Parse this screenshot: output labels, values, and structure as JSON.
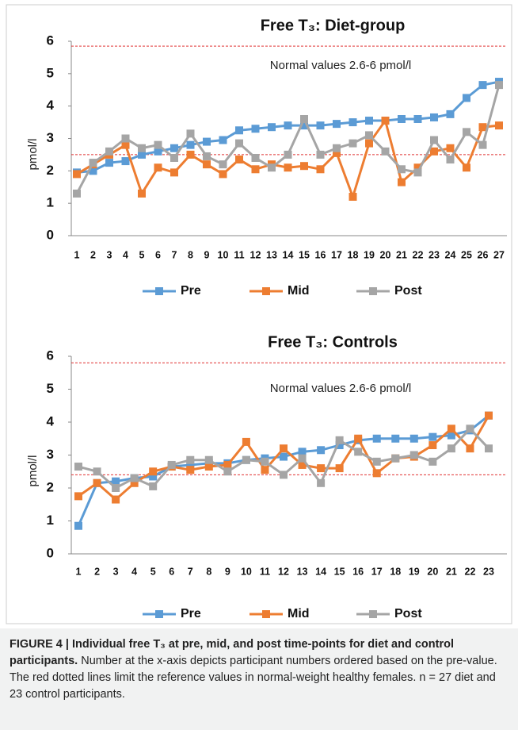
{
  "chart_data": [
    {
      "type": "line",
      "title": "Free T₃: Diet-group",
      "y_label": "pmol/l",
      "annotation": "Normal values 2.6-6  pmol/l",
      "categories": [
        1,
        2,
        3,
        4,
        5,
        6,
        7,
        8,
        9,
        10,
        11,
        12,
        13,
        14,
        15,
        16,
        17,
        18,
        19,
        20,
        21,
        22,
        23,
        24,
        25,
        26,
        27
      ],
      "ylim": [
        0,
        6
      ],
      "yticks": [
        0,
        1,
        2,
        3,
        4,
        5,
        6
      ],
      "reference_lines": [
        2.5,
        5.85
      ],
      "reference_color": "#e03030",
      "series": [
        {
          "name": "Pre",
          "color": "#5b9bd5",
          "values": [
            1.95,
            2.0,
            2.25,
            2.3,
            2.5,
            2.6,
            2.7,
            2.8,
            2.9,
            2.95,
            3.25,
            3.3,
            3.35,
            3.4,
            3.4,
            3.4,
            3.45,
            3.5,
            3.55,
            3.55,
            3.6,
            3.6,
            3.65,
            3.75,
            4.25,
            4.65,
            4.75
          ]
        },
        {
          "name": "Mid",
          "color": "#ed7d31",
          "values": [
            1.9,
            2.2,
            2.5,
            2.8,
            1.3,
            2.1,
            1.95,
            2.5,
            2.2,
            1.9,
            2.35,
            2.05,
            2.2,
            2.1,
            2.15,
            2.05,
            2.55,
            1.2,
            2.85,
            3.55,
            1.65,
            2.1,
            2.6,
            2.7,
            2.1,
            3.35,
            3.4
          ]
        },
        {
          "name": "Post",
          "color": "#a5a5a5",
          "values": [
            1.3,
            2.25,
            2.6,
            3.0,
            2.7,
            2.8,
            2.4,
            3.15,
            2.45,
            2.2,
            2.85,
            2.4,
            2.1,
            2.5,
            3.6,
            2.5,
            2.7,
            2.85,
            3.1,
            2.6,
            2.05,
            1.95,
            2.95,
            2.35,
            3.2,
            2.8,
            4.65
          ]
        }
      ]
    },
    {
      "type": "line",
      "title": "Free T₃: Controls",
      "y_label": "pmol/l",
      "annotation": "Normal values 2.6-6  pmol/l",
      "categories": [
        1,
        2,
        3,
        4,
        5,
        6,
        7,
        8,
        9,
        10,
        11,
        12,
        13,
        14,
        15,
        16,
        17,
        18,
        19,
        20,
        21,
        22,
        23
      ],
      "ylim": [
        0,
        6
      ],
      "yticks": [
        0,
        1,
        2,
        3,
        4,
        5,
        6
      ],
      "reference_lines": [
        2.4,
        5.8
      ],
      "reference_color": "#e03030",
      "series": [
        {
          "name": "Pre",
          "color": "#5b9bd5",
          "values": [
            0.85,
            2.15,
            2.2,
            2.3,
            2.35,
            2.65,
            2.7,
            2.75,
            2.75,
            2.85,
            2.9,
            2.95,
            3.1,
            3.15,
            3.3,
            3.45,
            3.5,
            3.5,
            3.5,
            3.55,
            3.6,
            3.75,
            4.2
          ]
        },
        {
          "name": "Mid",
          "color": "#ed7d31",
          "values": [
            1.75,
            2.15,
            1.65,
            2.15,
            2.5,
            2.65,
            2.55,
            2.65,
            2.7,
            3.4,
            2.55,
            3.2,
            2.7,
            2.6,
            2.6,
            3.5,
            2.45,
            2.9,
            2.95,
            3.3,
            3.8,
            3.2,
            4.2
          ]
        },
        {
          "name": "Post",
          "color": "#a5a5a5",
          "values": [
            2.65,
            2.5,
            2.0,
            2.3,
            2.05,
            2.7,
            2.85,
            2.85,
            2.5,
            2.85,
            2.8,
            2.4,
            2.9,
            2.15,
            3.45,
            3.1,
            2.8,
            2.9,
            3.0,
            2.8,
            3.2,
            3.8,
            3.2
          ]
        }
      ]
    }
  ],
  "caption": {
    "bold": "FIGURE 4 | Individual free T₃ at pre, mid, and post time-points for diet and control participants.",
    "text": "Number at the x-axis depicts participant numbers ordered based on the pre-value. The red dotted lines limit the reference values in normal-weight healthy females. n = 27 diet and 23 control participants."
  }
}
